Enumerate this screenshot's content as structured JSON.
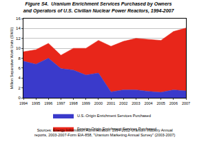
{
  "chart_data": {
    "type": "area",
    "title": "Figure S4.  Uranium Enrichment Services Purchased by Owners\nand Operators of U.S. Civilian Nuclear Power Reactors, 1994-2007",
    "y_label": "Million Separative Work Units (SWU)",
    "x": [
      1994,
      1995,
      1996,
      1997,
      1998,
      1999,
      2000,
      2001,
      2002,
      2003,
      2004,
      2005,
      2006,
      2007
    ],
    "series": [
      {
        "name": "U.S.-Origin Enrichment Services Purchased",
        "color": "#3a3acb",
        "values": [
          7.4,
          6.8,
          8.0,
          5.9,
          5.6,
          4.6,
          5.0,
          1.2,
          1.6,
          1.6,
          1.3,
          1.1,
          1.6,
          1.4
        ]
      },
      {
        "name": "Foreign-Origin Enrichment Services Purchased",
        "color": "#e8261a",
        "values": [
          1.9,
          2.9,
          3.0,
          2.7,
          4.4,
          5.4,
          6.6,
          9.2,
          9.8,
          10.4,
          10.5,
          10.5,
          11.8,
          12.7
        ]
      }
    ],
    "xlim": [
      1994,
      2007
    ],
    "xticks": [
      1994,
      1995,
      1996,
      1997,
      1998,
      1999,
      2000,
      2001,
      2002,
      2003,
      2004,
      2005,
      2006,
      2007
    ],
    "ylim": [
      0,
      16
    ],
    "yticks": [
      0,
      2,
      4,
      6,
      8,
      10,
      12,
      14,
      16
    ],
    "stacked": true,
    "grid": true,
    "legend": "bottom",
    "annotations": [
      "Sources: Energy Information Administration: 1994-2002-Uranium Industry Annual\nreports, 2003-2007-Form EIA-858, \"Uranium Marketing Annual Survey\" (2003-2007)"
    ]
  }
}
